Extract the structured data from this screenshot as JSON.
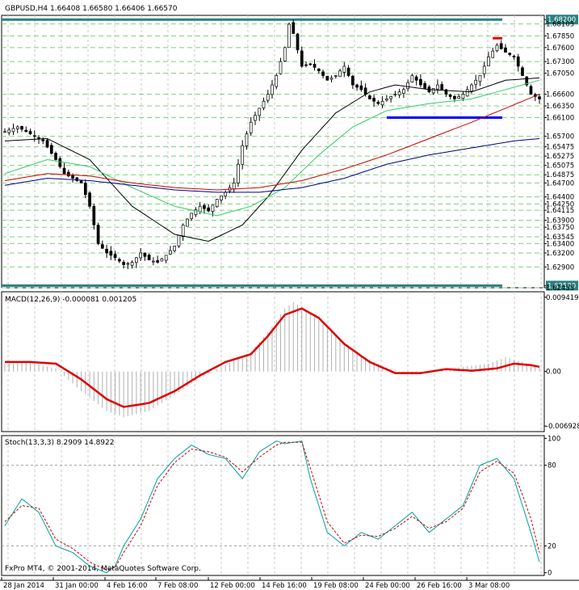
{
  "price_panel": {
    "header": "GBPUSD,H4  1.66408 1.66580 1.66406 1.66570",
    "axis_labels": [
      {
        "label": "1.68200",
        "v": 1.682,
        "level": "teal"
      },
      {
        "label": "1.68105",
        "v": 1.68105
      },
      {
        "label": "1.67850",
        "v": 1.6785
      },
      {
        "label": "1.67600",
        "v": 1.676
      },
      {
        "label": "1.67300",
        "v": 1.673
      },
      {
        "label": "1.67050",
        "v": 1.6705
      },
      {
        "label": "1.66600",
        "v": 1.666
      },
      {
        "label": "1.66350",
        "v": 1.6635
      },
      {
        "label": "1.66100",
        "v": 1.661
      },
      {
        "label": "1.65700",
        "v": 1.657
      },
      {
        "label": "1.65475",
        "v": 1.65475
      },
      {
        "label": "1.65275",
        "v": 1.65275
      },
      {
        "label": "1.65075",
        "v": 1.65075
      },
      {
        "label": "1.64875",
        "v": 1.64875
      },
      {
        "label": "1.64700",
        "v": 1.647
      },
      {
        "label": "1.64400",
        "v": 1.644
      },
      {
        "label": "1.64250",
        "v": 1.6425
      },
      {
        "label": "1.64115",
        "v": 1.64115
      },
      {
        "label": "1.63900",
        "v": 1.639
      },
      {
        "label": "1.63750",
        "v": 1.6375
      },
      {
        "label": "1.63545",
        "v": 1.63545
      },
      {
        "label": "1.63400",
        "v": 1.634
      },
      {
        "label": "1.63200",
        "v": 1.632
      },
      {
        "label": "1.62900",
        "v": 1.629
      },
      {
        "label": "1.62500",
        "v": 1.625,
        "level": "teal"
      },
      {
        "label": "1.62455",
        "v": 1.62455
      }
    ]
  },
  "macd_panel": {
    "header": "MACD(12,26,9) -0.000081 0.001205",
    "axis_labels": [
      {
        "label": "0.009419",
        "v": 0.009419
      },
      {
        "label": "0.00",
        "v": 0.0
      },
      {
        "label": "-0.006928",
        "v": -0.006928
      }
    ]
  },
  "stoch_panel": {
    "header": "Stoch(13,3,3) 8.2909 14.8922",
    "axis_labels": [
      {
        "label": "100",
        "v": 100
      },
      {
        "label": "80",
        "v": 80
      },
      {
        "label": "20",
        "v": 20
      },
      {
        "label": "0",
        "v": 0
      }
    ]
  },
  "footer": "FxPro MT4, © 2001-2014, MetaQuotes Software Corp.",
  "chart_data": {
    "type": "candlestick",
    "symbol": "GBPUSD",
    "timeframe": "H4",
    "ohlc_header": {
      "open": 1.66408,
      "high": 1.6658,
      "low": 1.66406,
      "close": 1.6657
    },
    "x_tick_labels": [
      "28 Jan 2014",
      "31 Jan 00:00",
      "4 Feb 16:00",
      "7 Feb 08:00",
      "12 Feb 00:00",
      "14 Feb 16:00",
      "19 Feb 08:00",
      "24 Feb 00:00",
      "26 Feb 16:00",
      "3 Mar 08:00"
    ],
    "price_ylim": [
      1.62455,
      1.6829
    ],
    "price_path": [
      [
        0,
        1.658
      ],
      [
        3,
        1.659
      ],
      [
        6,
        1.6575
      ],
      [
        9,
        1.656
      ],
      [
        12,
        1.652
      ],
      [
        14,
        1.649
      ],
      [
        16,
        1.648
      ],
      [
        18,
        1.647
      ],
      [
        20,
        1.642
      ],
      [
        22,
        1.634
      ],
      [
        24,
        1.632
      ],
      [
        26,
        1.631
      ],
      [
        28,
        1.6295
      ],
      [
        30,
        1.63
      ],
      [
        32,
        1.632
      ],
      [
        34,
        1.6305
      ],
      [
        36,
        1.63
      ],
      [
        38,
        1.6315
      ],
      [
        40,
        1.6335
      ],
      [
        42,
        1.638
      ],
      [
        44,
        1.6405
      ],
      [
        46,
        1.642
      ],
      [
        48,
        1.641
      ],
      [
        50,
        1.6435
      ],
      [
        52,
        1.645
      ],
      [
        54,
        1.647
      ],
      [
        56,
        1.655
      ],
      [
        58,
        1.66
      ],
      [
        60,
        1.663
      ],
      [
        62,
        1.666
      ],
      [
        64,
        1.67
      ],
      [
        66,
        1.676
      ],
      [
        67,
        1.681
      ],
      [
        68,
        1.679
      ],
      [
        70,
        1.672
      ],
      [
        72,
        1.6725
      ],
      [
        74,
        1.671
      ],
      [
        76,
        1.669
      ],
      [
        78,
        1.67
      ],
      [
        80,
        1.672
      ],
      [
        82,
        1.668
      ],
      [
        84,
        1.667
      ],
      [
        86,
        1.665
      ],
      [
        88,
        1.664
      ],
      [
        90,
        1.665
      ],
      [
        92,
        1.666
      ],
      [
        94,
        1.667
      ],
      [
        96,
        1.67
      ],
      [
        98,
        1.668
      ],
      [
        100,
        1.6665
      ],
      [
        102,
        1.668
      ],
      [
        104,
        1.666
      ],
      [
        106,
        1.665
      ],
      [
        108,
        1.666
      ],
      [
        110,
        1.668
      ],
      [
        112,
        1.67
      ],
      [
        114,
        1.674
      ],
      [
        116,
        1.6765
      ],
      [
        118,
        1.675
      ],
      [
        120,
        1.674
      ],
      [
        122,
        1.67
      ],
      [
        124,
        1.666
      ],
      [
        126,
        1.665
      ]
    ],
    "n_bars": 127,
    "price_series": [
      {
        "name": "MA fast (black)",
        "color": "#000000",
        "points": [
          [
            0,
            1.656
          ],
          [
            10,
            1.6565
          ],
          [
            20,
            1.652
          ],
          [
            30,
            1.642
          ],
          [
            40,
            1.636
          ],
          [
            48,
            1.6345
          ],
          [
            56,
            1.638
          ],
          [
            62,
            1.644
          ],
          [
            70,
            1.654
          ],
          [
            78,
            1.662
          ],
          [
            86,
            1.6665
          ],
          [
            92,
            1.668
          ],
          [
            100,
            1.667
          ],
          [
            110,
            1.6665
          ],
          [
            118,
            1.669
          ],
          [
            126,
            1.6695
          ]
        ]
      },
      {
        "name": "MA mid (green)",
        "color": "#33cc66",
        "points": [
          [
            0,
            1.649
          ],
          [
            10,
            1.652
          ],
          [
            20,
            1.6505
          ],
          [
            30,
            1.646
          ],
          [
            40,
            1.642
          ],
          [
            50,
            1.64
          ],
          [
            58,
            1.642
          ],
          [
            66,
            1.646
          ],
          [
            74,
            1.653
          ],
          [
            82,
            1.659
          ],
          [
            90,
            1.6625
          ],
          [
            100,
            1.664
          ],
          [
            110,
            1.665
          ],
          [
            118,
            1.667
          ],
          [
            126,
            1.669
          ]
        ]
      },
      {
        "name": "MA slow (red)",
        "color": "#cc0000",
        "points": [
          [
            0,
            1.6475
          ],
          [
            10,
            1.649
          ],
          [
            20,
            1.6485
          ],
          [
            30,
            1.647
          ],
          [
            40,
            1.646
          ],
          [
            50,
            1.6455
          ],
          [
            60,
            1.646
          ],
          [
            70,
            1.6475
          ],
          [
            80,
            1.65
          ],
          [
            90,
            1.653
          ],
          [
            100,
            1.6565
          ],
          [
            110,
            1.66
          ],
          [
            118,
            1.663
          ],
          [
            126,
            1.666
          ]
        ]
      },
      {
        "name": "MA long (navy)",
        "color": "#000080",
        "points": [
          [
            0,
            1.6465
          ],
          [
            10,
            1.648
          ],
          [
            20,
            1.6475
          ],
          [
            30,
            1.6465
          ],
          [
            40,
            1.6455
          ],
          [
            50,
            1.645
          ],
          [
            60,
            1.645
          ],
          [
            70,
            1.646
          ],
          [
            80,
            1.648
          ],
          [
            90,
            1.651
          ],
          [
            100,
            1.653
          ],
          [
            110,
            1.6545
          ],
          [
            120,
            1.656
          ],
          [
            126,
            1.6565
          ]
        ]
      }
    ],
    "levels": [
      {
        "value": 1.682,
        "color": "#2a8080",
        "label": "1.68200",
        "x_from": 0,
        "x_to": 127
      },
      {
        "value": 1.625,
        "color": "#2a8080",
        "label": "1.62500",
        "x_from": 0,
        "x_to": 127
      },
      {
        "value": 1.678,
        "color": "#e00000",
        "x_from": 115,
        "x_to": 128
      },
      {
        "value": 1.661,
        "color": "#0000ee",
        "x_from": 90,
        "x_to": 128
      }
    ],
    "macd": {
      "ylim": [
        -0.007628,
        0.010119
      ],
      "zero": 0.0,
      "signal_color": "#dd0000",
      "histogram_color": "#b0b0b0",
      "histogram_path": [
        [
          0,
          0.001
        ],
        [
          6,
          0.0011
        ],
        [
          12,
          0.0004
        ],
        [
          18,
          -0.0025
        ],
        [
          24,
          -0.005
        ],
        [
          28,
          -0.0058
        ],
        [
          34,
          -0.005
        ],
        [
          40,
          -0.003
        ],
        [
          46,
          -0.0008
        ],
        [
          52,
          0.0008
        ],
        [
          58,
          0.0025
        ],
        [
          62,
          0.005
        ],
        [
          66,
          0.008
        ],
        [
          68,
          0.0088
        ],
        [
          72,
          0.0075
        ],
        [
          78,
          0.0045
        ],
        [
          84,
          0.002
        ],
        [
          90,
          0.0005
        ],
        [
          96,
          -0.0004
        ],
        [
          102,
          0.0001
        ],
        [
          108,
          0.0006
        ],
        [
          114,
          0.001
        ],
        [
          118,
          0.0018
        ],
        [
          122,
          0.0012
        ],
        [
          126,
          0.0005
        ]
      ],
      "signal_path": [
        [
          0,
          0.0012
        ],
        [
          6,
          0.0012
        ],
        [
          12,
          0.001
        ],
        [
          18,
          -0.001
        ],
        [
          24,
          -0.0035
        ],
        [
          28,
          -0.0045
        ],
        [
          34,
          -0.004
        ],
        [
          40,
          -0.0025
        ],
        [
          46,
          -0.0005
        ],
        [
          52,
          0.0012
        ],
        [
          58,
          0.0022
        ],
        [
          62,
          0.0045
        ],
        [
          66,
          0.0072
        ],
        [
          70,
          0.008
        ],
        [
          74,
          0.0068
        ],
        [
          80,
          0.0035
        ],
        [
          86,
          0.0012
        ],
        [
          92,
          -0.0002
        ],
        [
          98,
          -0.0002
        ],
        [
          104,
          0.0003
        ],
        [
          110,
          0.0001
        ],
        [
          116,
          0.0004
        ],
        [
          120,
          0.001
        ],
        [
          124,
          0.0008
        ],
        [
          126,
          0.0006
        ]
      ]
    },
    "stoch": {
      "ylim": [
        -2,
        102
      ],
      "levels": [
        80,
        20
      ],
      "main_color": "#00a0a0",
      "signal_color": "#cc0000",
      "main_path": [
        [
          0,
          35
        ],
        [
          4,
          55
        ],
        [
          8,
          45
        ],
        [
          12,
          20
        ],
        [
          16,
          15
        ],
        [
          20,
          5
        ],
        [
          24,
          0
        ],
        [
          26,
          5
        ],
        [
          28,
          20
        ],
        [
          32,
          40
        ],
        [
          36,
          70
        ],
        [
          40,
          85
        ],
        [
          44,
          95
        ],
        [
          48,
          88
        ],
        [
          52,
          85
        ],
        [
          56,
          70
        ],
        [
          60,
          90
        ],
        [
          64,
          98
        ],
        [
          66,
          96
        ],
        [
          70,
          98
        ],
        [
          72,
          70
        ],
        [
          76,
          30
        ],
        [
          80,
          20
        ],
        [
          84,
          30
        ],
        [
          88,
          25
        ],
        [
          92,
          35
        ],
        [
          96,
          45
        ],
        [
          100,
          30
        ],
        [
          104,
          40
        ],
        [
          108,
          50
        ],
        [
          112,
          80
        ],
        [
          116,
          85
        ],
        [
          120,
          70
        ],
        [
          122,
          50
        ],
        [
          124,
          30
        ],
        [
          126,
          8
        ]
      ],
      "signal_path": [
        [
          0,
          38
        ],
        [
          4,
          50
        ],
        [
          8,
          48
        ],
        [
          12,
          25
        ],
        [
          16,
          18
        ],
        [
          20,
          8
        ],
        [
          24,
          2
        ],
        [
          26,
          4
        ],
        [
          28,
          15
        ],
        [
          32,
          35
        ],
        [
          36,
          65
        ],
        [
          40,
          82
        ],
        [
          44,
          92
        ],
        [
          48,
          90
        ],
        [
          52,
          86
        ],
        [
          56,
          75
        ],
        [
          60,
          86
        ],
        [
          64,
          95
        ],
        [
          66,
          97
        ],
        [
          70,
          97
        ],
        [
          72,
          78
        ],
        [
          76,
          38
        ],
        [
          80,
          22
        ],
        [
          84,
          28
        ],
        [
          88,
          27
        ],
        [
          92,
          33
        ],
        [
          96,
          42
        ],
        [
          100,
          33
        ],
        [
          104,
          38
        ],
        [
          108,
          48
        ],
        [
          112,
          75
        ],
        [
          116,
          83
        ],
        [
          120,
          74
        ],
        [
          122,
          58
        ],
        [
          124,
          40
        ],
        [
          126,
          15
        ]
      ]
    }
  }
}
